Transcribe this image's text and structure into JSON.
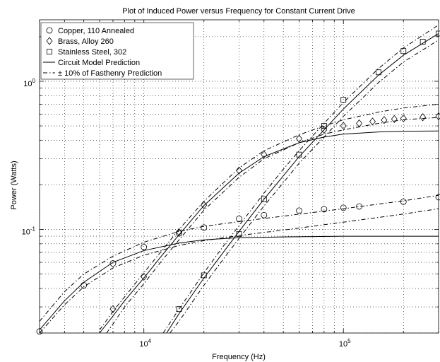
{
  "chart_data": {
    "type": "scatter",
    "title": "Plot of Induced Power versus Frequency for Constant Current Drive",
    "xlabel": "Frequency (Hz)",
    "ylabel": "Power (Watts)",
    "xscale": "log",
    "yscale": "log",
    "xlim": [
      3000,
      300000
    ],
    "ylim": [
      0.02,
      2.6
    ],
    "grid": true,
    "legend_position": "top-left",
    "x_ticks": [
      {
        "value": 10000,
        "base": "10",
        "exp": "4"
      },
      {
        "value": 100000,
        "base": "10",
        "exp": "5"
      }
    ],
    "y_ticks": [
      {
        "value": 0.1,
        "base": "10",
        "exp": "-1"
      },
      {
        "value": 1,
        "base": "10",
        "exp": "0"
      }
    ],
    "legend": [
      {
        "label": "Copper, 110 Annealed",
        "marker": "circle"
      },
      {
        "label": "Brass, Alloy 260",
        "marker": "diamond"
      },
      {
        "label": "Stainless Steel, 302",
        "marker": "square"
      },
      {
        "label": "Circuit Model Prediction",
        "line": "solid"
      },
      {
        "label": "± 10% of Fasthenry Prediction",
        "line": "dashdot"
      }
    ],
    "series": [
      {
        "name": "Copper, 110 Annealed",
        "marker": "circle",
        "x": [
          3000,
          5000,
          7000,
          10000,
          15000,
          20000,
          30000,
          40000,
          60000,
          80000,
          100000,
          120000,
          200000,
          300000
        ],
        "y": [
          0.0205,
          0.042,
          0.059,
          0.076,
          0.094,
          0.103,
          0.118,
          0.125,
          0.134,
          0.137,
          0.14,
          0.143,
          0.154,
          0.165
        ]
      },
      {
        "name": "Brass, Alloy 260",
        "marker": "diamond",
        "x": [
          7000,
          10000,
          15000,
          20000,
          30000,
          40000,
          60000,
          80000,
          100000,
          120000,
          140000,
          160000,
          180000,
          200000,
          250000,
          300000
        ],
        "y": [
          0.029,
          0.048,
          0.096,
          0.146,
          0.25,
          0.32,
          0.41,
          0.47,
          0.5,
          0.52,
          0.535,
          0.548,
          0.556,
          0.562,
          0.572,
          0.58
        ]
      },
      {
        "name": "Stainless Steel, 302",
        "marker": "square",
        "x": [
          15000,
          20000,
          30000,
          40000,
          60000,
          80000,
          100000,
          150000,
          200000,
          250000,
          300000
        ],
        "y": [
          0.029,
          0.049,
          0.093,
          0.16,
          0.32,
          0.5,
          0.75,
          1.15,
          1.6,
          1.85,
          2.1
        ]
      }
    ],
    "curves": [
      {
        "group": "copper",
        "style": "solid",
        "x": [
          3000,
          4000,
          5000,
          7000,
          10000,
          15000,
          20000,
          30000,
          50000,
          100000,
          200000,
          300000
        ],
        "y": [
          0.021,
          0.033,
          0.044,
          0.06,
          0.072,
          0.081,
          0.085,
          0.088,
          0.089,
          0.09,
          0.09,
          0.09
        ]
      },
      {
        "group": "copper",
        "style": "dashdot",
        "x": [
          3000,
          4000,
          5000,
          7000,
          10000,
          15000,
          20000,
          30000,
          50000,
          100000,
          200000,
          300000
        ],
        "y": [
          0.024,
          0.038,
          0.05,
          0.066,
          0.082,
          0.097,
          0.105,
          0.113,
          0.123,
          0.138,
          0.156,
          0.17
        ]
      },
      {
        "group": "copper",
        "style": "dashdot",
        "x": [
          3000,
          4000,
          5000,
          7000,
          10000,
          15000,
          20000,
          30000,
          50000,
          100000,
          200000,
          300000
        ],
        "y": [
          0.02,
          0.031,
          0.041,
          0.055,
          0.067,
          0.078,
          0.084,
          0.091,
          0.099,
          0.112,
          0.127,
          0.138
        ]
      },
      {
        "group": "brass",
        "style": "solid",
        "x": [
          6000,
          7000,
          8000,
          10000,
          12000,
          15000,
          20000,
          30000,
          40000,
          60000,
          80000,
          100000,
          150000,
          200000,
          300000
        ],
        "y": [
          0.02,
          0.026,
          0.033,
          0.047,
          0.064,
          0.092,
          0.145,
          0.24,
          0.31,
          0.385,
          0.42,
          0.44,
          0.455,
          0.46,
          0.462
        ]
      },
      {
        "group": "brass",
        "style": "dashdot",
        "x": [
          6000,
          7000,
          8000,
          10000,
          12000,
          15000,
          20000,
          30000,
          40000,
          60000,
          80000,
          100000,
          150000,
          200000,
          300000
        ],
        "y": [
          0.021,
          0.028,
          0.035,
          0.051,
          0.069,
          0.1,
          0.155,
          0.26,
          0.34,
          0.435,
          0.5,
          0.55,
          0.62,
          0.66,
          0.7
        ]
      },
      {
        "group": "brass",
        "style": "dashdot",
        "x": [
          6500,
          7000,
          8000,
          10000,
          12000,
          15000,
          20000,
          30000,
          40000,
          60000,
          80000,
          100000,
          150000,
          200000,
          300000
        ],
        "y": [
          0.02,
          0.023,
          0.03,
          0.043,
          0.059,
          0.085,
          0.135,
          0.225,
          0.3,
          0.385,
          0.44,
          0.47,
          0.52,
          0.55,
          0.57
        ]
      },
      {
        "group": "stainless",
        "style": "solid",
        "x": [
          13000,
          15000,
          20000,
          25000,
          30000,
          40000,
          50000,
          60000,
          80000,
          100000,
          150000,
          200000,
          300000
        ],
        "y": [
          0.02,
          0.027,
          0.047,
          0.07,
          0.097,
          0.16,
          0.23,
          0.31,
          0.47,
          0.65,
          1.1,
          1.5,
          2.1
        ]
      },
      {
        "group": "stainless",
        "style": "dashdot",
        "x": [
          12500,
          15000,
          20000,
          25000,
          30000,
          40000,
          50000,
          60000,
          80000,
          100000,
          150000,
          200000,
          300000
        ],
        "y": [
          0.02,
          0.029,
          0.051,
          0.077,
          0.106,
          0.176,
          0.255,
          0.34,
          0.52,
          0.72,
          1.22,
          1.68,
          2.4
        ]
      },
      {
        "group": "stainless",
        "style": "dashdot",
        "x": [
          13500,
          15000,
          20000,
          25000,
          30000,
          40000,
          50000,
          60000,
          80000,
          100000,
          150000,
          200000,
          300000
        ],
        "y": [
          0.02,
          0.024,
          0.042,
          0.063,
          0.087,
          0.144,
          0.207,
          0.28,
          0.42,
          0.58,
          0.98,
          1.35,
          1.9
        ]
      }
    ]
  }
}
